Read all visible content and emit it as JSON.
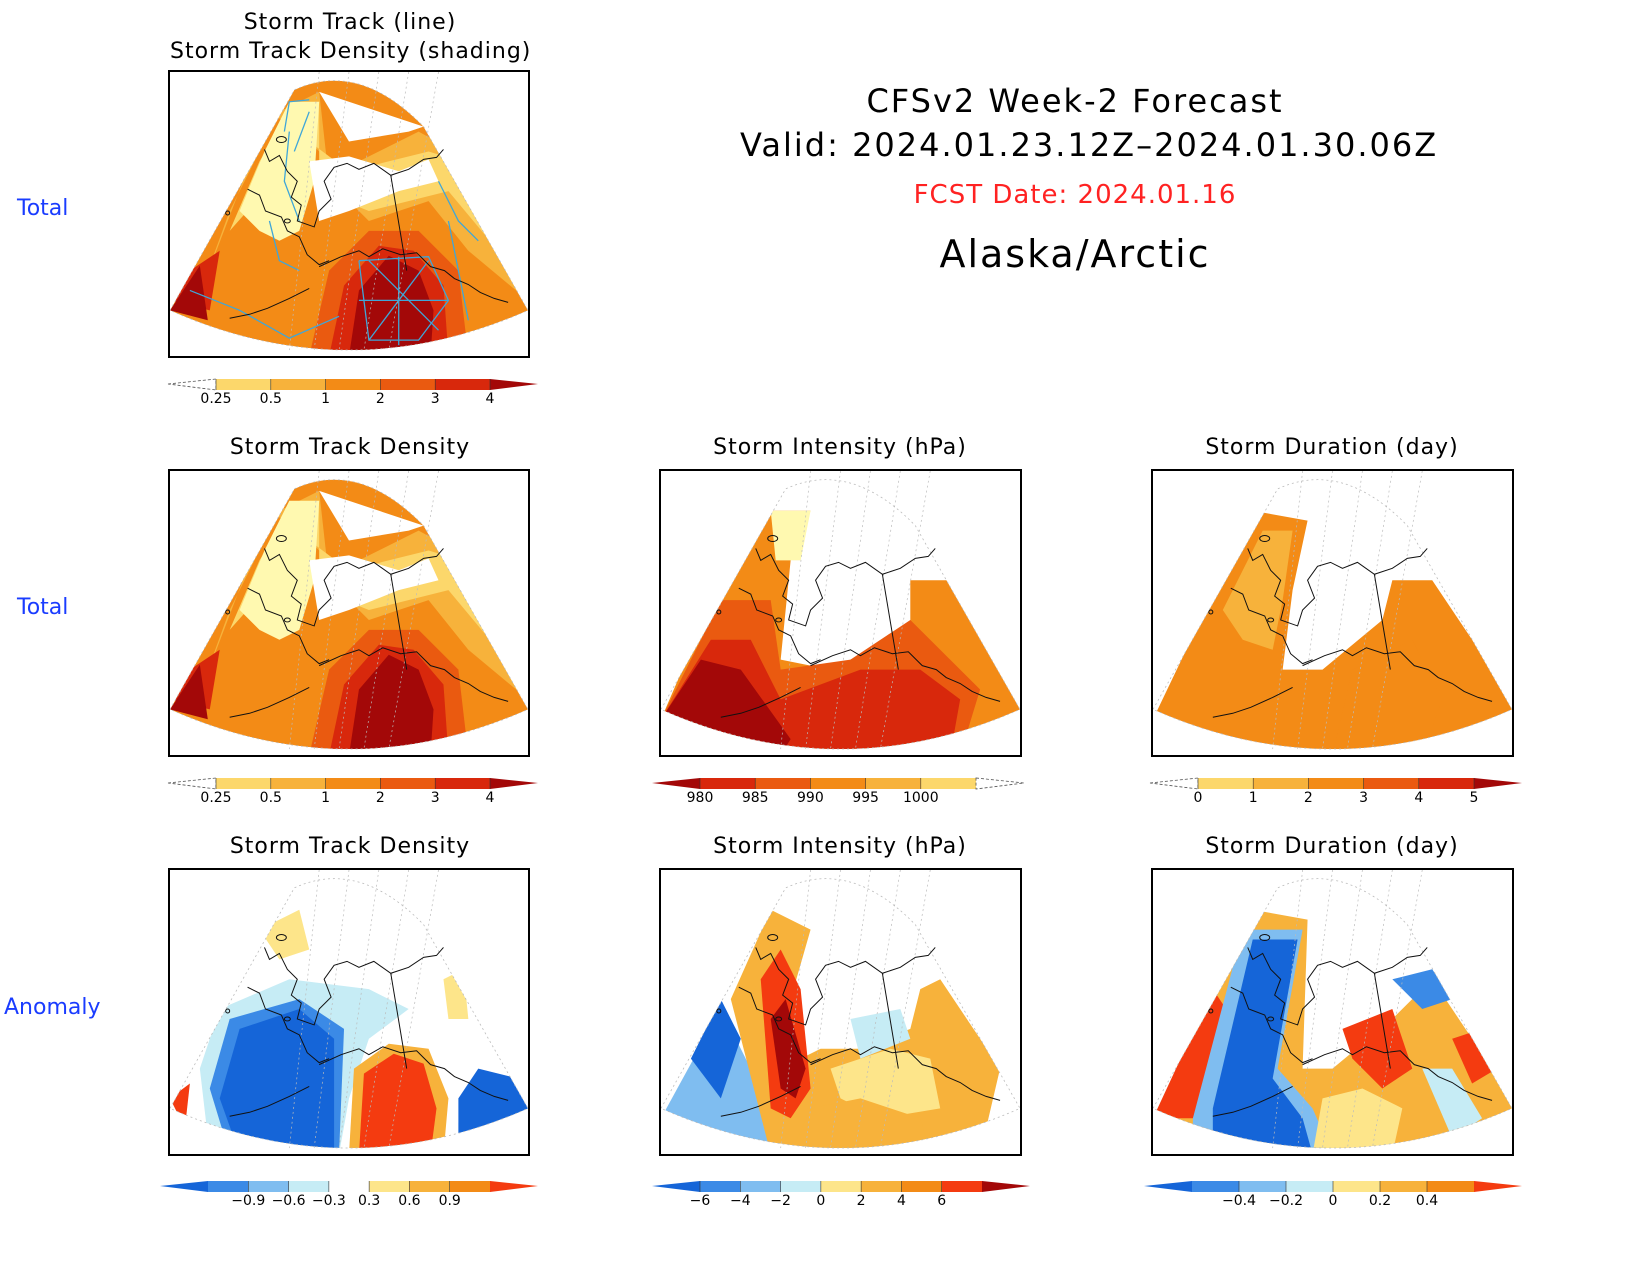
{
  "header": {
    "line1": "CFSv2 Week-2 Forecast",
    "line2": "Valid: 2024.01.23.12Z–2024.01.30.06Z",
    "fcst": "FCST Date: 2024.01.16",
    "region": "Alaska/Arctic",
    "fcst_color": "#ff2222"
  },
  "rows": {
    "row1": "Total",
    "row2": "Total",
    "row3": "Anomaly"
  },
  "panels": {
    "p1": {
      "title_a": "Storm Track (line)",
      "title_b": "Storm Track Density (shading)"
    },
    "p2": {
      "title": "Storm Track Density"
    },
    "p3": {
      "title": "Storm Intensity (hPa)"
    },
    "p4": {
      "title": "Storm Duration (day)"
    },
    "p5": {
      "title": "Storm Track Density"
    },
    "p6": {
      "title": "Storm Intensity (hPa)"
    },
    "p7": {
      "title": "Storm Duration (day)"
    }
  },
  "colorbars": {
    "density": {
      "labels": [
        "0.25",
        "0.5",
        "1",
        "2",
        "3",
        "4"
      ],
      "colors": [
        "#fff9b0",
        "#fcd76b",
        "#f7b23b",
        "#f38b16",
        "#ea5a10",
        "#d8280c",
        "#a30808"
      ]
    },
    "intensity": {
      "labels": [
        "980",
        "985",
        "990",
        "995",
        "1000"
      ],
      "colors": [
        "#a30808",
        "#d8280c",
        "#ea5a10",
        "#f38b16",
        "#f7b23b",
        "#fcd76b",
        "#fff9b0"
      ]
    },
    "duration": {
      "labels": [
        "0",
        "1",
        "2",
        "3",
        "4",
        "5"
      ],
      "colors": [
        "#fff9b0",
        "#fcd76b",
        "#f7b23b",
        "#f38b16",
        "#ea5a10",
        "#d8280c",
        "#a30808"
      ]
    },
    "dens_anom": {
      "labels": [
        "−0.9",
        "−0.6",
        "−0.3",
        "0.3",
        "0.6",
        "0.9"
      ],
      "colors": [
        "#1565d8",
        "#3b8ae6",
        "#7fbdf0",
        "#c6ecf5",
        "#ffffff",
        "#fde58a",
        "#f7b23b",
        "#f38b16",
        "#f43b10"
      ]
    },
    "int_anom": {
      "labels": [
        "−6",
        "−4",
        "−2",
        "0",
        "2",
        "4",
        "6"
      ],
      "colors": [
        "#1565d8",
        "#3b8ae6",
        "#7fbdf0",
        "#c6ecf5",
        "#fde58a",
        "#f7b23b",
        "#f38b16",
        "#f43b10",
        "#a30808"
      ]
    },
    "dur_anom": {
      "labels": [
        "−0.4",
        "−0.2",
        "0",
        "0.2",
        "0.4"
      ],
      "colors": [
        "#1565d8",
        "#3b8ae6",
        "#7fbdf0",
        "#c6ecf5",
        "#fde58a",
        "#f7b23b",
        "#f38b16",
        "#f43b10"
      ]
    }
  }
}
